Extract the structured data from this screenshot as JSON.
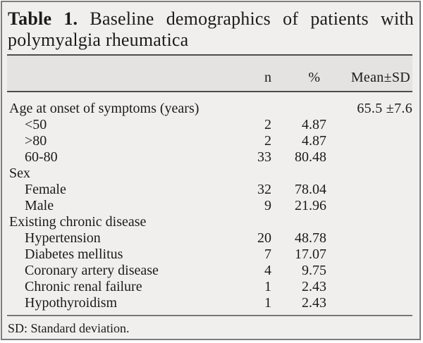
{
  "title": {
    "bold": "Table 1.",
    "line1_rest": "Baseline demographics of patients with",
    "line2": "polymyalgia rheumatica"
  },
  "table": {
    "columns": [
      "n",
      "%",
      "Mean±SD"
    ],
    "rows": [
      {
        "label": "Age at onset of symptoms (years)",
        "indent": false,
        "n": "",
        "pct": "",
        "mean": "65.5 ±7.6"
      },
      {
        "label": "<50",
        "indent": true,
        "n": "2",
        "pct": "4.87",
        "mean": ""
      },
      {
        "label": ">80",
        "indent": true,
        "n": "2",
        "pct": "4.87",
        "mean": ""
      },
      {
        "label": "60-80",
        "indent": true,
        "n": "33",
        "pct": "80.48",
        "mean": ""
      },
      {
        "label": "Sex",
        "indent": false,
        "n": "",
        "pct": "",
        "mean": ""
      },
      {
        "label": "Female",
        "indent": true,
        "n": "32",
        "pct": "78.04",
        "mean": ""
      },
      {
        "label": "Male",
        "indent": true,
        "n": "9",
        "pct": "21.96",
        "mean": ""
      },
      {
        "label": "Existing chronic disease",
        "indent": false,
        "n": "",
        "pct": "",
        "mean": ""
      },
      {
        "label": "Hypertension",
        "indent": true,
        "n": "20",
        "pct": "48.78",
        "mean": ""
      },
      {
        "label": "Diabetes mellitus",
        "indent": true,
        "n": "7",
        "pct": "17.07",
        "mean": ""
      },
      {
        "label": "Coronary artery disease",
        "indent": true,
        "n": "4",
        "pct": "9.75",
        "mean": ""
      },
      {
        "label": "Chronic renal failure",
        "indent": true,
        "n": "1",
        "pct": "2.43",
        "mean": ""
      },
      {
        "label": "Hypothyroidism",
        "indent": true,
        "n": "1",
        "pct": "2.43",
        "mean": ""
      }
    ]
  },
  "footnote": "SD: Standard deviation.",
  "colors": {
    "background": "#f0efee",
    "header_band": "#e4e3e1",
    "frame_border": "#7c7c7c",
    "rule_dark": "#4d4d4d",
    "rule_light": "#787878",
    "text": "#1b1b1b"
  }
}
